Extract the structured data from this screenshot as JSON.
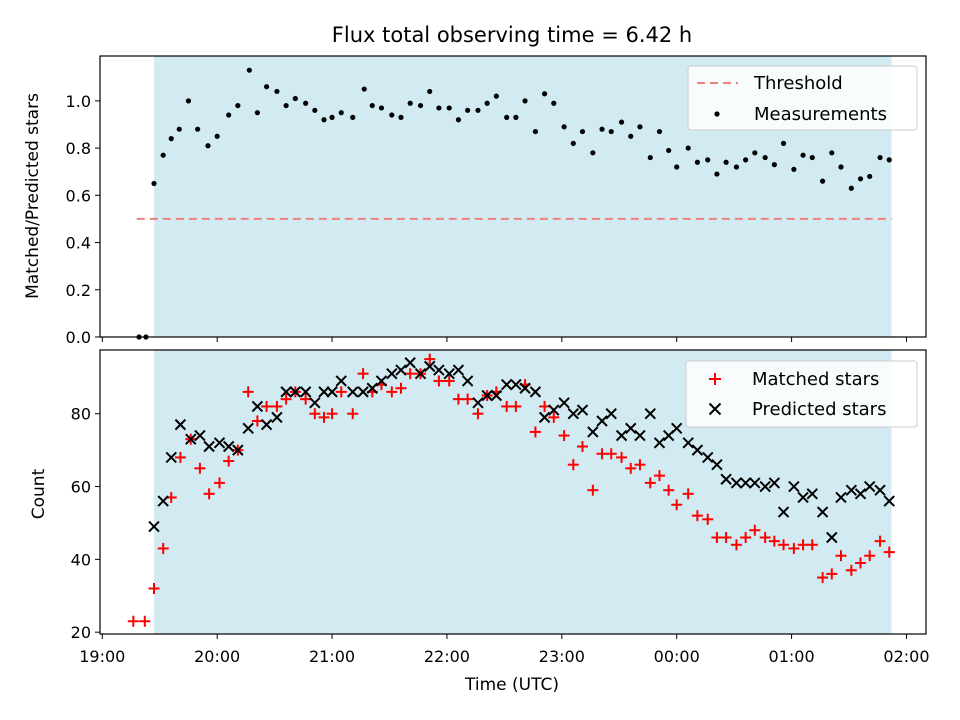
{
  "chart_data": [
    {
      "type": "scatter",
      "title": "Flux total observing time = 6.42 h",
      "xlabel": "",
      "ylabel": "Matched/Predicted stars",
      "x_unit": "hours since 19:00 UTC",
      "xlim": [
        18.98,
        26.17
      ],
      "ylim": [
        0.0,
        1.19
      ],
      "yticks": [
        "0.0",
        "0.2",
        "0.4",
        "0.6",
        "0.8",
        "1.0"
      ],
      "shaded_span": [
        19.45,
        25.87
      ],
      "legend_position": "top-right",
      "threshold": {
        "name": "Threshold",
        "value": 0.5,
        "x_range": [
          19.3,
          25.87
        ],
        "color": "#f08080"
      },
      "series": [
        {
          "name": "Measurements",
          "color": "#000000",
          "points": [
            [
              19.32,
              0.0
            ],
            [
              19.38,
              0.0
            ],
            [
              19.45,
              0.65
            ],
            [
              19.53,
              0.77
            ],
            [
              19.6,
              0.84
            ],
            [
              19.67,
              0.88
            ],
            [
              19.75,
              1.0
            ],
            [
              19.83,
              0.88
            ],
            [
              19.92,
              0.81
            ],
            [
              20.0,
              0.85
            ],
            [
              20.1,
              0.94
            ],
            [
              20.18,
              0.98
            ],
            [
              20.28,
              1.13
            ],
            [
              20.35,
              0.95
            ],
            [
              20.43,
              1.06
            ],
            [
              20.52,
              1.04
            ],
            [
              20.6,
              0.98
            ],
            [
              20.68,
              1.01
            ],
            [
              20.77,
              0.99
            ],
            [
              20.85,
              0.96
            ],
            [
              20.93,
              0.92
            ],
            [
              21.0,
              0.93
            ],
            [
              21.08,
              0.95
            ],
            [
              21.18,
              0.93
            ],
            [
              21.28,
              1.05
            ],
            [
              21.35,
              0.98
            ],
            [
              21.43,
              0.97
            ],
            [
              21.52,
              0.94
            ],
            [
              21.6,
              0.93
            ],
            [
              21.68,
              0.99
            ],
            [
              21.77,
              0.98
            ],
            [
              21.85,
              1.04
            ],
            [
              21.93,
              0.97
            ],
            [
              22.02,
              0.97
            ],
            [
              22.1,
              0.92
            ],
            [
              22.18,
              0.96
            ],
            [
              22.27,
              0.96
            ],
            [
              22.35,
              0.99
            ],
            [
              22.43,
              1.02
            ],
            [
              22.52,
              0.93
            ],
            [
              22.6,
              0.93
            ],
            [
              22.68,
              1.0
            ],
            [
              22.77,
              0.87
            ],
            [
              22.85,
              1.03
            ],
            [
              22.93,
              0.99
            ],
            [
              23.02,
              0.89
            ],
            [
              23.1,
              0.82
            ],
            [
              23.18,
              0.87
            ],
            [
              23.27,
              0.78
            ],
            [
              23.35,
              0.88
            ],
            [
              23.43,
              0.87
            ],
            [
              23.52,
              0.91
            ],
            [
              23.6,
              0.85
            ],
            [
              23.68,
              0.89
            ],
            [
              23.77,
              0.76
            ],
            [
              23.85,
              0.87
            ],
            [
              23.93,
              0.79
            ],
            [
              24.0,
              0.72
            ],
            [
              24.1,
              0.8
            ],
            [
              24.18,
              0.74
            ],
            [
              24.27,
              0.75
            ],
            [
              24.35,
              0.69
            ],
            [
              24.43,
              0.74
            ],
            [
              24.52,
              0.72
            ],
            [
              24.6,
              0.75
            ],
            [
              24.68,
              0.78
            ],
            [
              24.77,
              0.76
            ],
            [
              24.85,
              0.73
            ],
            [
              24.93,
              0.82
            ],
            [
              25.02,
              0.71
            ],
            [
              25.1,
              0.77
            ],
            [
              25.18,
              0.76
            ],
            [
              25.27,
              0.66
            ],
            [
              25.35,
              0.78
            ],
            [
              25.43,
              0.72
            ],
            [
              25.52,
              0.63
            ],
            [
              25.6,
              0.67
            ],
            [
              25.68,
              0.68
            ],
            [
              25.77,
              0.76
            ],
            [
              25.85,
              0.75
            ]
          ]
        }
      ]
    },
    {
      "type": "scatter",
      "title": "",
      "xlabel": "Time (UTC)",
      "ylabel": "Count",
      "x_unit": "hours since 19:00 UTC",
      "xlim": [
        18.98,
        26.17
      ],
      "ylim": [
        19.5,
        97.5
      ],
      "yticks": [
        "20",
        "40",
        "60",
        "80"
      ],
      "xticks": [
        "19:00",
        "20:00",
        "21:00",
        "22:00",
        "23:00",
        "00:00",
        "01:00",
        "02:00"
      ],
      "shaded_span": [
        19.45,
        25.87
      ],
      "legend_position": "top-right",
      "series": [
        {
          "name": "Matched stars",
          "color": "#ff0000",
          "marker": "plus",
          "points": [
            [
              19.27,
              23
            ],
            [
              19.37,
              23
            ],
            [
              19.45,
              32
            ],
            [
              19.53,
              43
            ],
            [
              19.6,
              57
            ],
            [
              19.68,
              68
            ],
            [
              19.77,
              73
            ],
            [
              19.85,
              65
            ],
            [
              19.93,
              58
            ],
            [
              20.02,
              61
            ],
            [
              20.1,
              67
            ],
            [
              20.18,
              70
            ],
            [
              20.27,
              86
            ],
            [
              20.35,
              78
            ],
            [
              20.43,
              82
            ],
            [
              20.52,
              82
            ],
            [
              20.6,
              84
            ],
            [
              20.68,
              86
            ],
            [
              20.77,
              84
            ],
            [
              20.85,
              80
            ],
            [
              20.93,
              79
            ],
            [
              21.0,
              80
            ],
            [
              21.08,
              86
            ],
            [
              21.18,
              80
            ],
            [
              21.27,
              91
            ],
            [
              21.35,
              86
            ],
            [
              21.43,
              88
            ],
            [
              21.52,
              86
            ],
            [
              21.6,
              87
            ],
            [
              21.68,
              91
            ],
            [
              21.77,
              91
            ],
            [
              21.85,
              95
            ],
            [
              21.93,
              89
            ],
            [
              22.02,
              89
            ],
            [
              22.1,
              84
            ],
            [
              22.18,
              84
            ],
            [
              22.27,
              80
            ],
            [
              22.35,
              85
            ],
            [
              22.43,
              86
            ],
            [
              22.52,
              82
            ],
            [
              22.6,
              82
            ],
            [
              22.68,
              88
            ],
            [
              22.77,
              75
            ],
            [
              22.85,
              82
            ],
            [
              22.93,
              79
            ],
            [
              23.02,
              74
            ],
            [
              23.1,
              66
            ],
            [
              23.18,
              71
            ],
            [
              23.27,
              59
            ],
            [
              23.35,
              69
            ],
            [
              23.43,
              69
            ],
            [
              23.52,
              68
            ],
            [
              23.6,
              65
            ],
            [
              23.68,
              66
            ],
            [
              23.77,
              61
            ],
            [
              23.85,
              63
            ],
            [
              23.93,
              59
            ],
            [
              24.0,
              55
            ],
            [
              24.1,
              58
            ],
            [
              24.18,
              52
            ],
            [
              24.27,
              51
            ],
            [
              24.35,
              46
            ],
            [
              24.43,
              46
            ],
            [
              24.52,
              44
            ],
            [
              24.6,
              46
            ],
            [
              24.68,
              48
            ],
            [
              24.77,
              46
            ],
            [
              24.85,
              45
            ],
            [
              24.93,
              44
            ],
            [
              25.02,
              43
            ],
            [
              25.1,
              44
            ],
            [
              25.18,
              44
            ],
            [
              25.27,
              35
            ],
            [
              25.35,
              36
            ],
            [
              25.43,
              41
            ],
            [
              25.52,
              37
            ],
            [
              25.6,
              39
            ],
            [
              25.68,
              41
            ],
            [
              25.77,
              45
            ],
            [
              25.85,
              42
            ]
          ]
        },
        {
          "name": "Predicted stars",
          "color": "#000000",
          "marker": "x",
          "points": [
            [
              19.45,
              49
            ],
            [
              19.53,
              56
            ],
            [
              19.6,
              68
            ],
            [
              19.68,
              77
            ],
            [
              19.77,
              73
            ],
            [
              19.85,
              74
            ],
            [
              19.93,
              71
            ],
            [
              20.02,
              72
            ],
            [
              20.1,
              71
            ],
            [
              20.18,
              70
            ],
            [
              20.27,
              76
            ],
            [
              20.35,
              82
            ],
            [
              20.43,
              77
            ],
            [
              20.52,
              79
            ],
            [
              20.6,
              86
            ],
            [
              20.68,
              86
            ],
            [
              20.77,
              86
            ],
            [
              20.85,
              83
            ],
            [
              20.93,
              86
            ],
            [
              21.0,
              86
            ],
            [
              21.08,
              89
            ],
            [
              21.18,
              86
            ],
            [
              21.27,
              86
            ],
            [
              21.35,
              87
            ],
            [
              21.43,
              89
            ],
            [
              21.52,
              91
            ],
            [
              21.6,
              92
            ],
            [
              21.68,
              94
            ],
            [
              21.77,
              91
            ],
            [
              21.85,
              93
            ],
            [
              21.93,
              92
            ],
            [
              22.02,
              91
            ],
            [
              22.1,
              92
            ],
            [
              22.18,
              89
            ],
            [
              22.27,
              83
            ],
            [
              22.35,
              85
            ],
            [
              22.43,
              85
            ],
            [
              22.52,
              88
            ],
            [
              22.6,
              88
            ],
            [
              22.68,
              87
            ],
            [
              22.77,
              86
            ],
            [
              22.85,
              79
            ],
            [
              22.93,
              81
            ],
            [
              23.02,
              83
            ],
            [
              23.1,
              80
            ],
            [
              23.18,
              81
            ],
            [
              23.27,
              75
            ],
            [
              23.35,
              78
            ],
            [
              23.43,
              80
            ],
            [
              23.52,
              74
            ],
            [
              23.6,
              76
            ],
            [
              23.68,
              74
            ],
            [
              23.77,
              80
            ],
            [
              23.85,
              72
            ],
            [
              23.93,
              74
            ],
            [
              24.0,
              76
            ],
            [
              24.1,
              72
            ],
            [
              24.18,
              70
            ],
            [
              24.27,
              68
            ],
            [
              24.35,
              66
            ],
            [
              24.43,
              62
            ],
            [
              24.52,
              61
            ],
            [
              24.6,
              61
            ],
            [
              24.68,
              61
            ],
            [
              24.77,
              60
            ],
            [
              24.85,
              61
            ],
            [
              24.93,
              53
            ],
            [
              25.02,
              60
            ],
            [
              25.1,
              57
            ],
            [
              25.18,
              58
            ],
            [
              25.27,
              53
            ],
            [
              25.35,
              46
            ],
            [
              25.43,
              57
            ],
            [
              25.52,
              59
            ],
            [
              25.6,
              58
            ],
            [
              25.68,
              60
            ],
            [
              25.77,
              59
            ],
            [
              25.85,
              56
            ]
          ]
        }
      ]
    }
  ],
  "colors": {
    "span_fill": "#add8e6",
    "threshold_line": "#f08080",
    "matched_marker": "#ff0000",
    "predicted_marker": "#000000",
    "measurement_marker": "#000000"
  }
}
